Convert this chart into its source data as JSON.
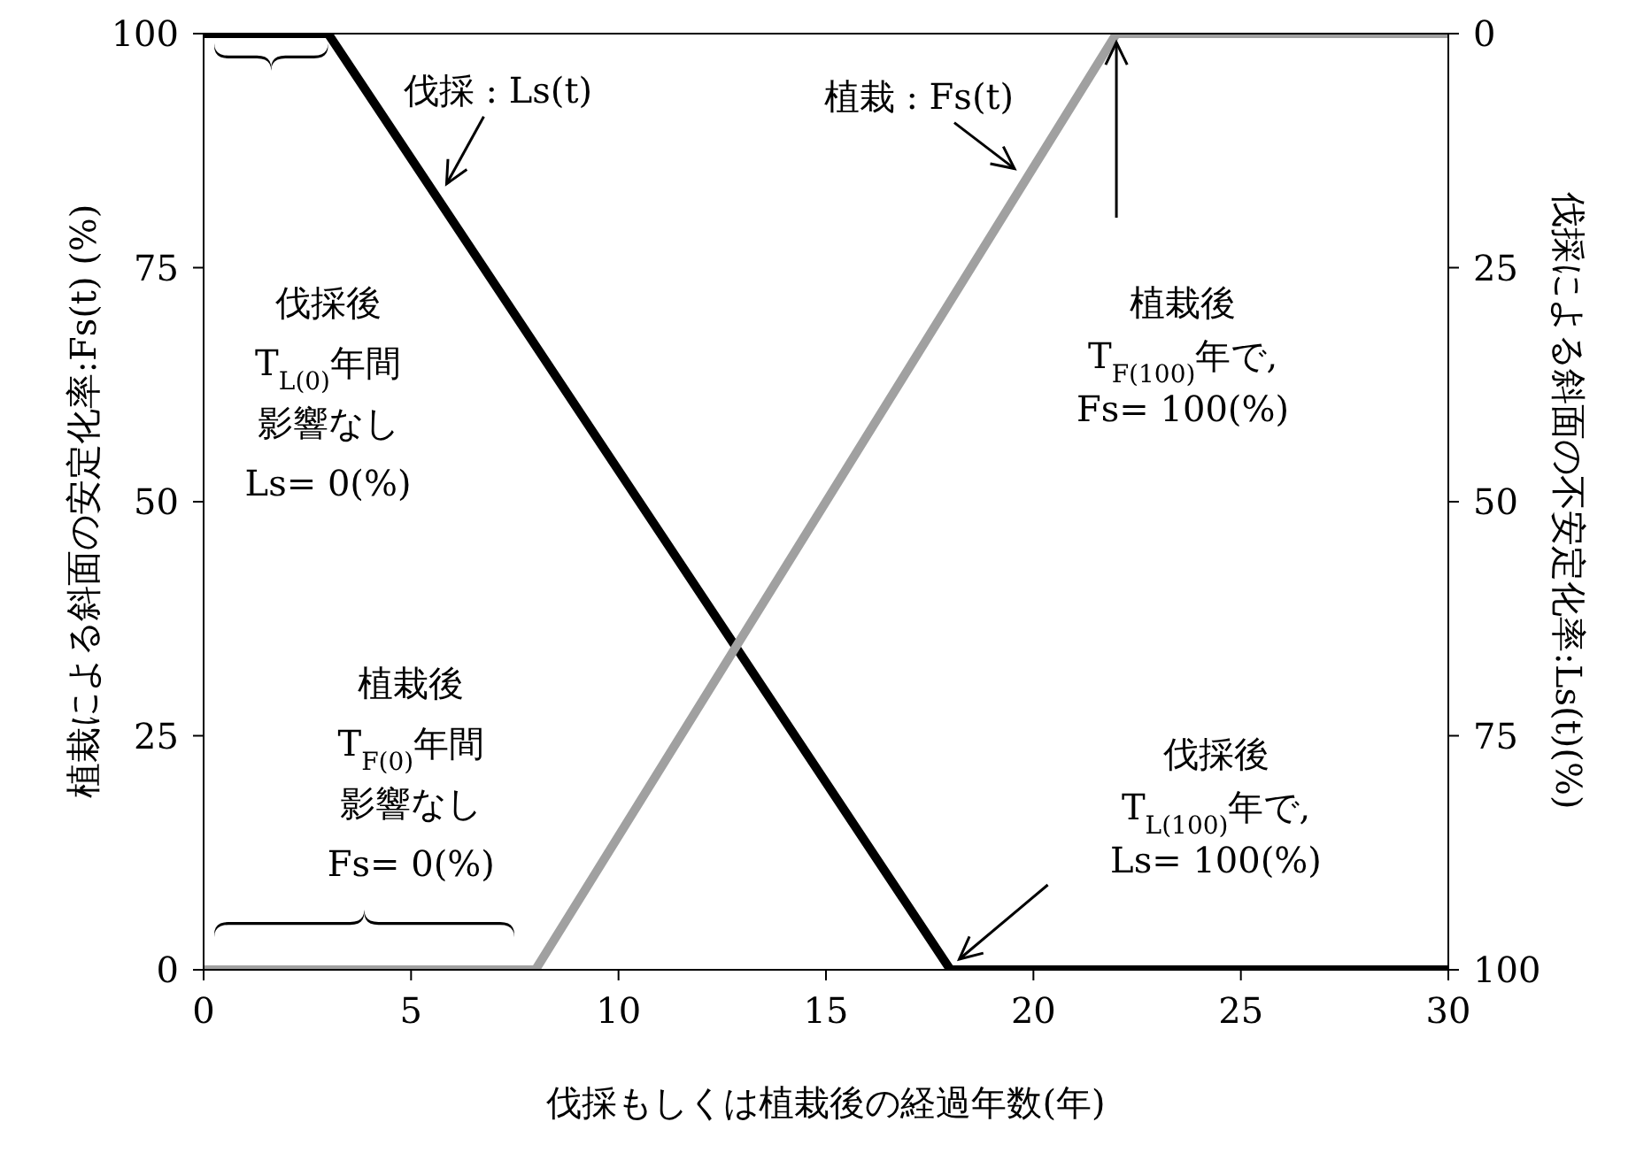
{
  "chart_data": {
    "type": "line",
    "xlabel": "伐採もしくは植栽後の経過年数(年)",
    "ylabel": "植栽による斜面の安定化率:Fs(t) (%)",
    "y2label": "伐採による斜面の不安定化率:Ls(t)(%)",
    "xlim": [
      0,
      30
    ],
    "xticks": [
      0,
      5,
      10,
      15,
      20,
      25,
      30
    ],
    "ylim": [
      0,
      100
    ],
    "yticks": [
      0,
      25,
      50,
      75,
      100
    ],
    "y2lim": [
      100,
      0
    ],
    "y2ticks": [
      0,
      25,
      50,
      75,
      100
    ],
    "marker": "none",
    "line_style": "solid",
    "series": [
      {
        "name": "伐採 : Ls(t)",
        "color": "#000000",
        "axis": "y2",
        "x": [
          0,
          3,
          18,
          30
        ],
        "values": [
          0,
          0,
          100,
          100
        ]
      },
      {
        "name": "植栽 : Fs(t)",
        "color": "#a0a0a0",
        "x": [
          0,
          8,
          22,
          30
        ],
        "values": [
          0,
          0,
          100,
          100
        ]
      }
    ],
    "annotations": [
      "伐採後\nT$_{L(0)}$年間影響なし\nLs= 0(%)",
      "植栽後\nT$_{F(0)}$年間影響なし\nFs= 0(%)",
      "植栽後\nT$_{F(100)}$年で,\nFs= 100(%)",
      "伐採後\nT$_{L(100)}$年で,\nLs= 100(%)"
    ]
  }
}
